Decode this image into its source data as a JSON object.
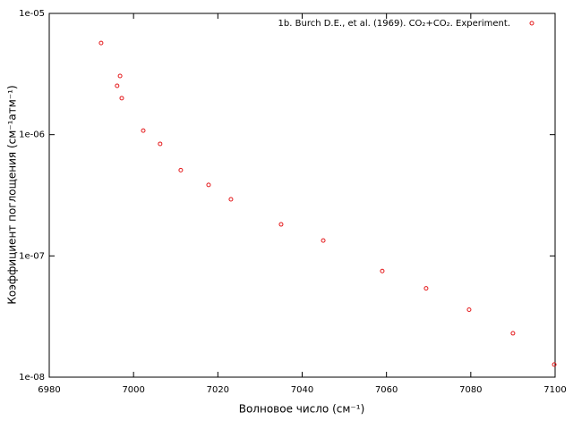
{
  "chart_data": {
    "type": "scatter",
    "xlabel": "Волновое число (см⁻¹)",
    "ylabel": "Коэффициент поглощения (см⁻¹атм⁻¹)",
    "xlim": [
      6980,
      7100
    ],
    "xticks": [
      6980,
      7000,
      7020,
      7040,
      7060,
      7080,
      7100
    ],
    "ylim": [
      1e-08,
      1e-05
    ],
    "ylog": true,
    "yticks": [
      {
        "value": 1e-08,
        "label": "1e-08"
      },
      {
        "value": 1e-07,
        "label": "1e-07"
      },
      {
        "value": 1e-06,
        "label": "1e-06"
      },
      {
        "value": 1e-05,
        "label": "1e-05"
      }
    ],
    "legend_position": "top-right",
    "series": [
      {
        "name": "1b. Burch D.E., et al. (1969). CO₂+CO₂. Experiment.",
        "color": "#e41a1c",
        "x": [
          6992.3,
          6996.8,
          6996.1,
          6997.2,
          7002.3,
          7006.3,
          7011.2,
          7017.8,
          7023.1,
          7035.0,
          7045.0,
          7059.0,
          7069.4,
          7079.6,
          7090.0,
          7099.8
        ],
        "values": [
          5.7e-06,
          3.05e-06,
          2.53e-06,
          2e-06,
          1.08e-06,
          8.4e-07,
          5.1e-07,
          3.85e-07,
          2.93e-07,
          1.82e-07,
          1.34e-07,
          7.5e-08,
          5.4e-08,
          3.6e-08,
          2.3e-08,
          1.27e-08
        ]
      }
    ]
  }
}
